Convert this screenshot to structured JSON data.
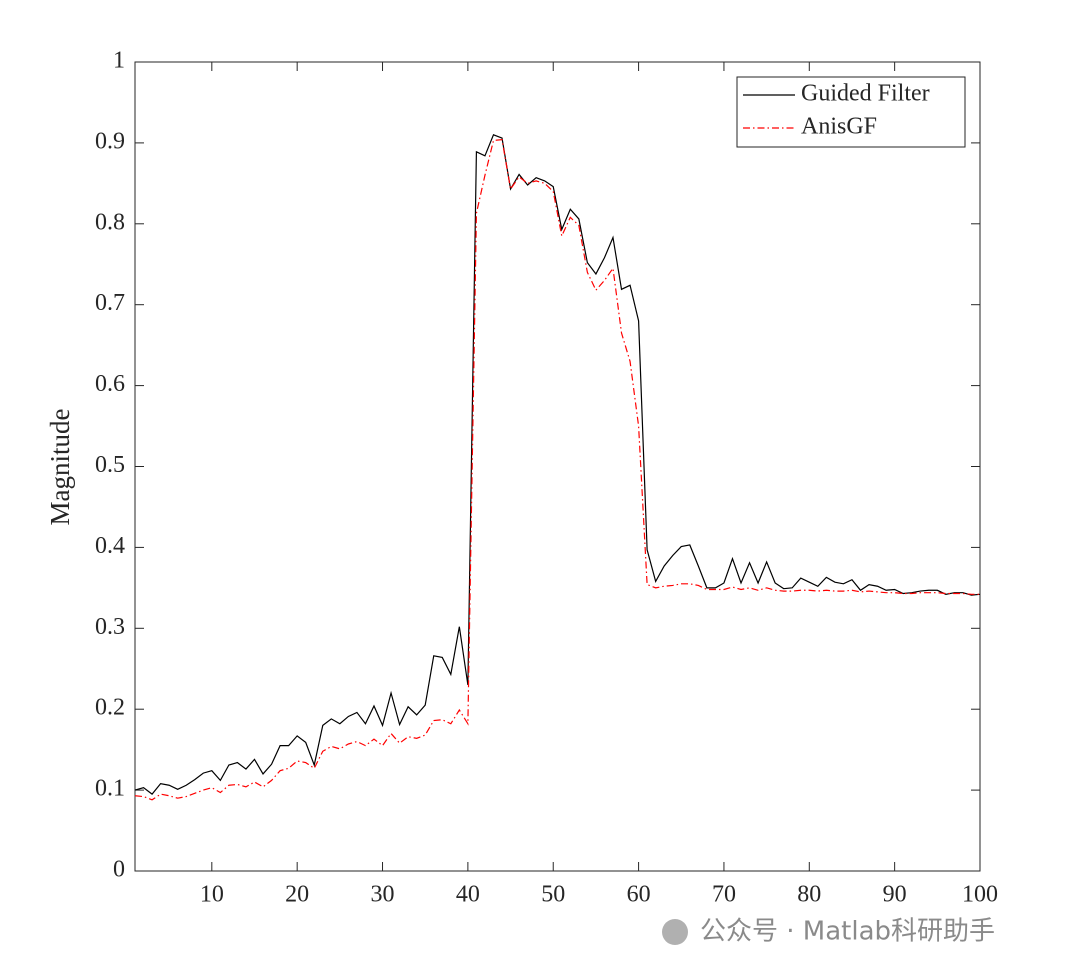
{
  "chart_data": {
    "type": "line",
    "ylabel": "Magnitude",
    "x": [
      1,
      2,
      3,
      4,
      5,
      6,
      7,
      8,
      9,
      10,
      11,
      12,
      13,
      14,
      15,
      16,
      17,
      18,
      19,
      20,
      21,
      22,
      23,
      24,
      25,
      26,
      27,
      28,
      29,
      30,
      31,
      32,
      33,
      34,
      35,
      36,
      37,
      38,
      39,
      40,
      41,
      42,
      43,
      44,
      45,
      46,
      47,
      48,
      49,
      50,
      51,
      52,
      53,
      54,
      55,
      56,
      57,
      58,
      59,
      60,
      61,
      62,
      63,
      64,
      65,
      66,
      67,
      68,
      69,
      70,
      71,
      72,
      73,
      74,
      75,
      76,
      77,
      78,
      79,
      80,
      81,
      82,
      83,
      84,
      85,
      86,
      87,
      88,
      89,
      90,
      91,
      92,
      93,
      94,
      95,
      96,
      97,
      98,
      99,
      100
    ],
    "series": [
      {
        "name": "Guided Filter",
        "color": "#000000",
        "dash": "solid",
        "values": [
          0.1,
          0.103,
          0.095,
          0.108,
          0.106,
          0.101,
          0.106,
          0.113,
          0.121,
          0.124,
          0.112,
          0.131,
          0.134,
          0.126,
          0.138,
          0.12,
          0.132,
          0.155,
          0.155,
          0.167,
          0.159,
          0.131,
          0.18,
          0.188,
          0.182,
          0.191,
          0.196,
          0.182,
          0.204,
          0.18,
          0.22,
          0.181,
          0.203,
          0.193,
          0.205,
          0.266,
          0.264,
          0.243,
          0.302,
          0.23,
          0.889,
          0.884,
          0.91,
          0.906,
          0.843,
          0.861,
          0.848,
          0.857,
          0.853,
          0.846,
          0.793,
          0.818,
          0.806,
          0.752,
          0.738,
          0.758,
          0.783,
          0.719,
          0.724,
          0.68,
          0.397,
          0.358,
          0.377,
          0.39,
          0.401,
          0.403,
          0.377,
          0.35,
          0.35,
          0.356,
          0.386,
          0.356,
          0.381,
          0.356,
          0.382,
          0.356,
          0.349,
          0.35,
          0.362,
          0.357,
          0.352,
          0.363,
          0.357,
          0.355,
          0.36,
          0.347,
          0.354,
          0.352,
          0.347,
          0.348,
          0.343,
          0.344,
          0.346,
          0.347,
          0.347,
          0.342,
          0.344,
          0.344,
          0.341,
          0.342
        ]
      },
      {
        "name": "AnisGF",
        "color": "#ff0000",
        "dash": "dashdot",
        "values": [
          0.093,
          0.092,
          0.088,
          0.095,
          0.093,
          0.09,
          0.092,
          0.096,
          0.1,
          0.103,
          0.097,
          0.106,
          0.107,
          0.104,
          0.11,
          0.104,
          0.112,
          0.124,
          0.127,
          0.136,
          0.134,
          0.127,
          0.148,
          0.154,
          0.151,
          0.157,
          0.16,
          0.155,
          0.163,
          0.155,
          0.17,
          0.158,
          0.166,
          0.164,
          0.168,
          0.186,
          0.187,
          0.182,
          0.199,
          0.182,
          0.813,
          0.86,
          0.903,
          0.904,
          0.843,
          0.858,
          0.85,
          0.853,
          0.85,
          0.84,
          0.785,
          0.808,
          0.798,
          0.74,
          0.718,
          0.73,
          0.745,
          0.665,
          0.63,
          0.55,
          0.354,
          0.35,
          0.352,
          0.353,
          0.355,
          0.355,
          0.353,
          0.348,
          0.348,
          0.348,
          0.351,
          0.348,
          0.35,
          0.347,
          0.35,
          0.347,
          0.346,
          0.346,
          0.347,
          0.347,
          0.346,
          0.347,
          0.346,
          0.346,
          0.347,
          0.345,
          0.346,
          0.345,
          0.344,
          0.344,
          0.343,
          0.343,
          0.344,
          0.344,
          0.344,
          0.343,
          0.343,
          0.343,
          0.342,
          0.342
        ]
      }
    ],
    "xlim": [
      1,
      100
    ],
    "xticks": [
      10,
      20,
      30,
      40,
      50,
      60,
      70,
      80,
      90,
      100
    ],
    "ylim": [
      0,
      1
    ],
    "yticks": [
      0,
      0.1,
      0.2,
      0.3,
      0.4,
      0.5,
      0.6,
      0.7,
      0.8,
      0.9,
      1
    ],
    "legend": "top-right",
    "grid": false,
    "watermark": "公众号 · Matlab科研助手"
  }
}
